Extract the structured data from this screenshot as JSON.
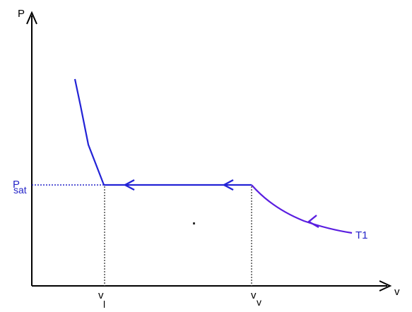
{
  "diagram": {
    "axis_y_label": "P",
    "axis_x_label": "v",
    "psat_label": {
      "main": "P",
      "sub": "sat"
    },
    "vl_label": {
      "main": "v",
      "sub": "l"
    },
    "vv_label": {
      "main": "v",
      "sub": "v"
    },
    "isotherm_label": "T1",
    "colors": {
      "axis": "#000000",
      "curve": "#2323d6",
      "curve_tail": "#5a1ee0",
      "label_blue": "#2424c8",
      "guide_dotted": "#333333"
    }
  }
}
